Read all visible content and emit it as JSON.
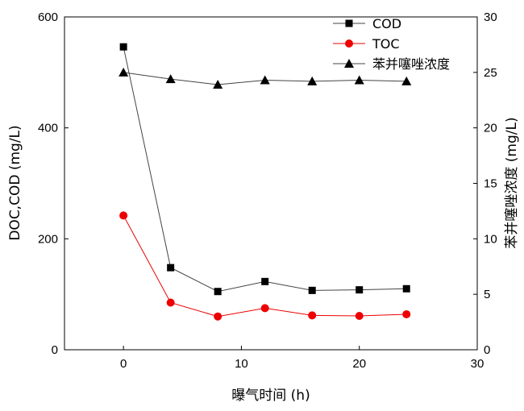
{
  "chart_data": {
    "type": "line",
    "xlabel": "曝气时间 (h)",
    "ylabel_left": "DOC,COD (mg/L)",
    "ylabel_right": "苯并噻唑浓度 (mg/L)",
    "xlim": [
      -5,
      30
    ],
    "ylim_left": [
      0,
      600
    ],
    "ylim_right": [
      0,
      30
    ],
    "x_ticks": [
      0,
      10,
      20,
      30
    ],
    "y_left_ticks": [
      0,
      200,
      400,
      600
    ],
    "y_right_ticks": [
      0,
      5,
      10,
      15,
      20,
      25,
      30
    ],
    "grid": false,
    "legend_position": "top-right",
    "x": [
      0,
      4,
      8,
      12,
      16,
      20,
      24
    ],
    "series": [
      {
        "name": "COD",
        "axis": "left",
        "marker": "square",
        "color": "#000000",
        "line_color": "#444444",
        "values": [
          546,
          148,
          105,
          123,
          107,
          108,
          110
        ]
      },
      {
        "name": "TOC",
        "axis": "left",
        "marker": "circle",
        "color": "#ee0000",
        "line_color": "#ee0000",
        "values": [
          242,
          85,
          60,
          75,
          62,
          61,
          64
        ]
      },
      {
        "name": "苯并噻唑浓度",
        "axis": "right",
        "marker": "triangle",
        "color": "#000000",
        "line_color": "#444444",
        "values": [
          25.0,
          24.4,
          23.9,
          24.3,
          24.2,
          24.3,
          24.2
        ]
      }
    ]
  }
}
